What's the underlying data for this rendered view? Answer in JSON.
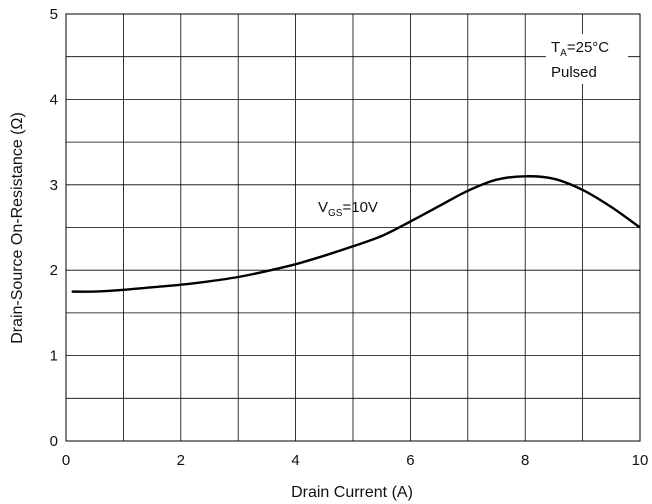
{
  "chart_data": {
    "type": "line",
    "xlabel": "Drain Current (A)",
    "ylabel": "Drain-Source On-Resistance (Ω)",
    "xlim": [
      0,
      10
    ],
    "ylim": [
      0,
      5
    ],
    "x_ticks": [
      "0",
      "2",
      "4",
      "6",
      "8",
      "10"
    ],
    "y_ticks": [
      "0",
      "1",
      "2",
      "3",
      "4",
      "5"
    ],
    "grid": true,
    "series": [
      {
        "name": "VGS=10V",
        "x": [
          0.1,
          0.5,
          1,
          1.5,
          2,
          2.5,
          3,
          3.5,
          4,
          4.5,
          5,
          5.5,
          6,
          6.5,
          7,
          7.5,
          8,
          8.5,
          9,
          9.5,
          10
        ],
        "y": [
          1.75,
          1.75,
          1.77,
          1.8,
          1.83,
          1.87,
          1.92,
          1.99,
          2.07,
          2.17,
          2.28,
          2.4,
          2.57,
          2.75,
          2.93,
          3.06,
          3.1,
          3.07,
          2.94,
          2.74,
          2.5
        ]
      }
    ],
    "annotations": {
      "vgs": {
        "main": "V",
        "sub": "GS",
        "rest": "=10V"
      },
      "temp": {
        "main": "T",
        "sub": "A",
        "rest": "=25°C"
      },
      "pulsed": "Pulsed"
    }
  }
}
